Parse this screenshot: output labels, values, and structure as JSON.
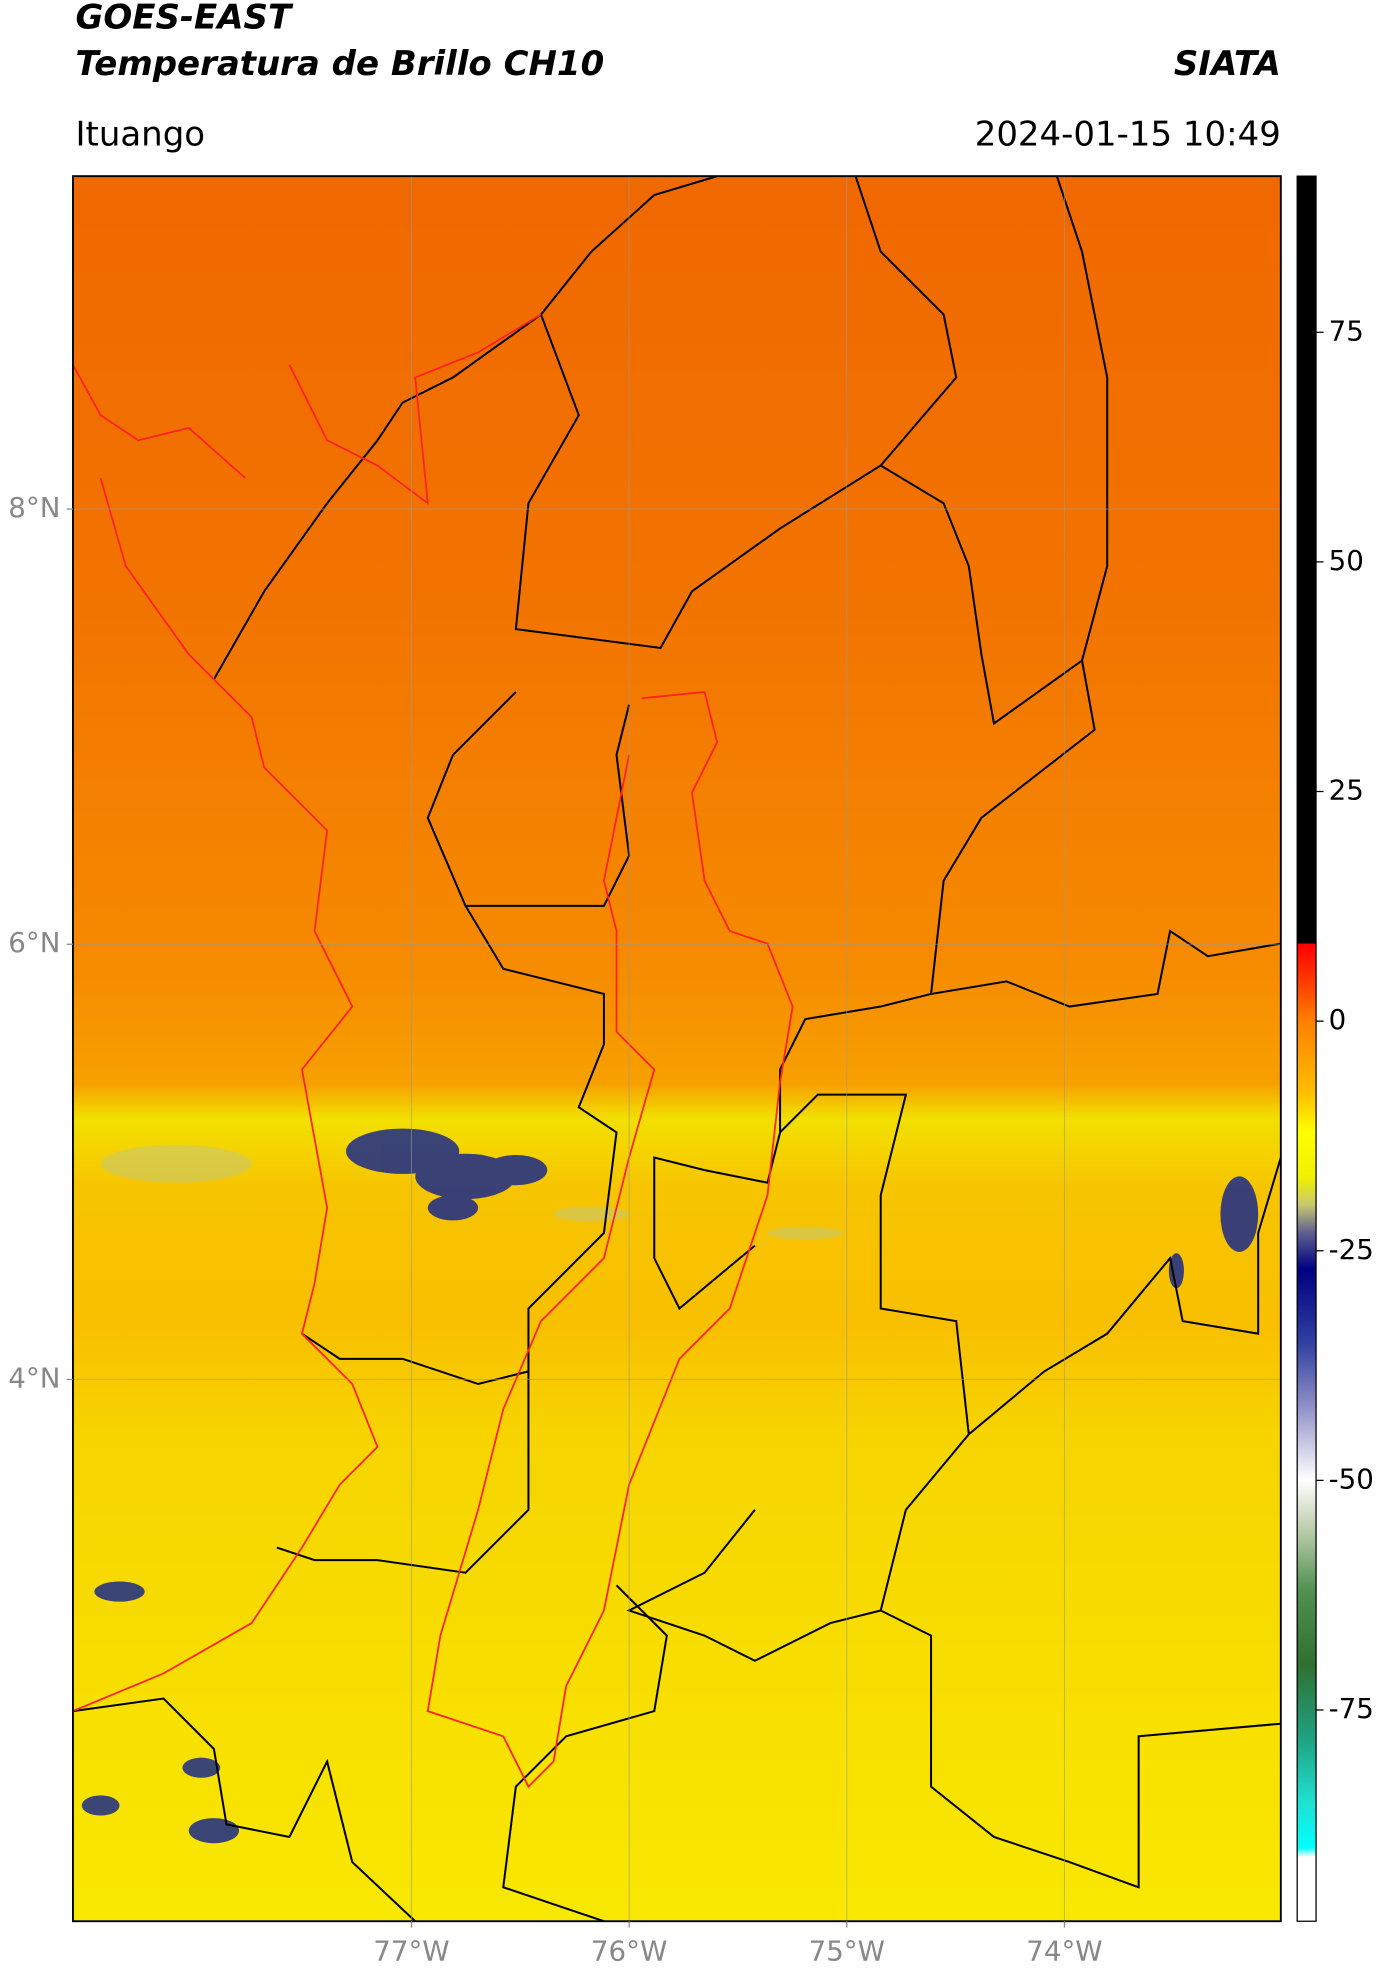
{
  "header": {
    "title": "GOES-EAST",
    "subtitle": "Temperatura de Brillo CH10",
    "source": "SIATA",
    "region": "Ituango",
    "datetime": "2024-01-15 10:49"
  },
  "map": {
    "lon_range": [
      -78.555,
      -73.006
    ],
    "lat_range": [
      1.51,
      9.53
    ],
    "lon_ticks": [
      {
        "value": -77,
        "label": "77°W"
      },
      {
        "value": -76,
        "label": "76°W"
      },
      {
        "value": -75,
        "label": "75°W"
      },
      {
        "value": -74,
        "label": "74°W"
      }
    ],
    "lat_ticks": [
      {
        "value": 8,
        "label": "8°N"
      },
      {
        "value": 6,
        "label": "6°N"
      },
      {
        "value": 4,
        "label": "4°N"
      }
    ],
    "grid": true
  },
  "colorbar": {
    "range": [
      -98,
      92
    ],
    "ticks": [
      75,
      50,
      25,
      0,
      -25,
      -50,
      -75
    ],
    "stops": [
      {
        "value": 92,
        "color": "#000000"
      },
      {
        "value": 8.5,
        "color": "#000000"
      },
      {
        "value": 8.4,
        "color": "#ff0000"
      },
      {
        "value": 5,
        "color": "#ff3000"
      },
      {
        "value": 0,
        "color": "#ff8000"
      },
      {
        "value": -8,
        "color": "#ffc000"
      },
      {
        "value": -12,
        "color": "#ffff00"
      },
      {
        "value": -17,
        "color": "#f0f000"
      },
      {
        "value": -20,
        "color": "#c8c870"
      },
      {
        "value": -23,
        "color": "#606090"
      },
      {
        "value": -27,
        "color": "#000080"
      },
      {
        "value": -35,
        "color": "#3040a0"
      },
      {
        "value": -42,
        "color": "#9090c8"
      },
      {
        "value": -50,
        "color": "#ffffff"
      },
      {
        "value": -55,
        "color": "#c0d0b0"
      },
      {
        "value": -62,
        "color": "#509050"
      },
      {
        "value": -70,
        "color": "#307030"
      },
      {
        "value": -78,
        "color": "#20a080"
      },
      {
        "value": -85,
        "color": "#20e0d0"
      },
      {
        "value": -90,
        "color": "#00ffff"
      },
      {
        "value": -91,
        "color": "#ffffff"
      },
      {
        "value": -98,
        "color": "#ffffff"
      }
    ]
  }
}
